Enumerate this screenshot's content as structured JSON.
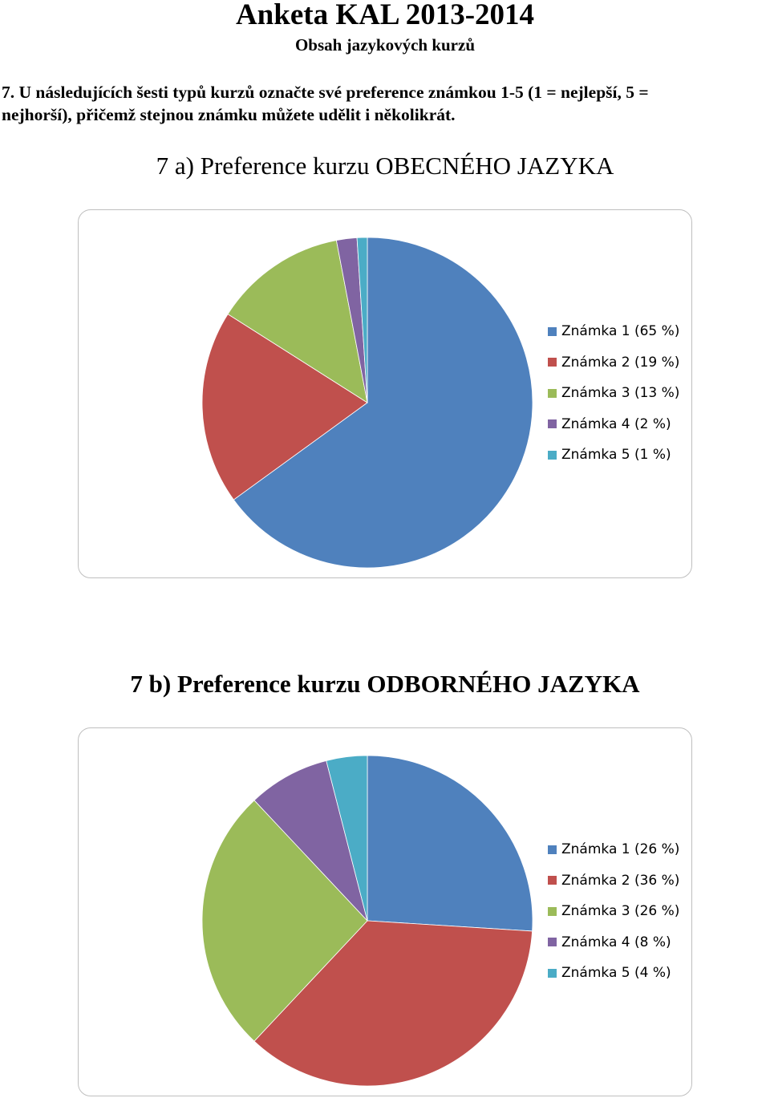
{
  "document": {
    "title": "Anketa KAL 2013-2014",
    "subtitle": "Obsah jazykových kurzů",
    "question": "7. U následujících šesti typů kurzů označte své preference známkou 1-5 (1 = nejlepší, 5 =\nnejhorší), přičemž stejnou známku můžete udělit i několikrát."
  },
  "chart_data": [
    {
      "type": "pie",
      "title": "7 a) Preference kurzu OBECNÉHO JAZYKA",
      "categories": [
        "Známka 1",
        "Známka 2",
        "Známka 3",
        "Známka 4",
        "Známka 5"
      ],
      "values": [
        65,
        19,
        13,
        2,
        1
      ],
      "legend": [
        "Známka 1 (65 %)",
        "Známka 2 (19 %)",
        "Známka 3 (13 %)",
        "Známka 4 (2 %)",
        "Známka 5 (1 %)"
      ],
      "colors": [
        "#4f81bd",
        "#c0504d",
        "#9bbb59",
        "#8064a2",
        "#4bacc6"
      ],
      "legend_position": "right"
    },
    {
      "type": "pie",
      "title": "7 b) Preference kurzu ODBORNÉHO JAZYKA",
      "categories": [
        "Známka 1",
        "Známka 2",
        "Známka 3",
        "Známka 4",
        "Známka 5"
      ],
      "values": [
        26,
        36,
        26,
        8,
        4
      ],
      "legend": [
        "Známka 1 (26 %)",
        "Známka 2 (36 %)",
        "Známka 3 (26 %)",
        "Známka 4 (8 %)",
        "Známka 5 (4 %)"
      ],
      "colors": [
        "#4f81bd",
        "#c0504d",
        "#9bbb59",
        "#8064a2",
        "#4bacc6"
      ],
      "legend_position": "right"
    }
  ]
}
